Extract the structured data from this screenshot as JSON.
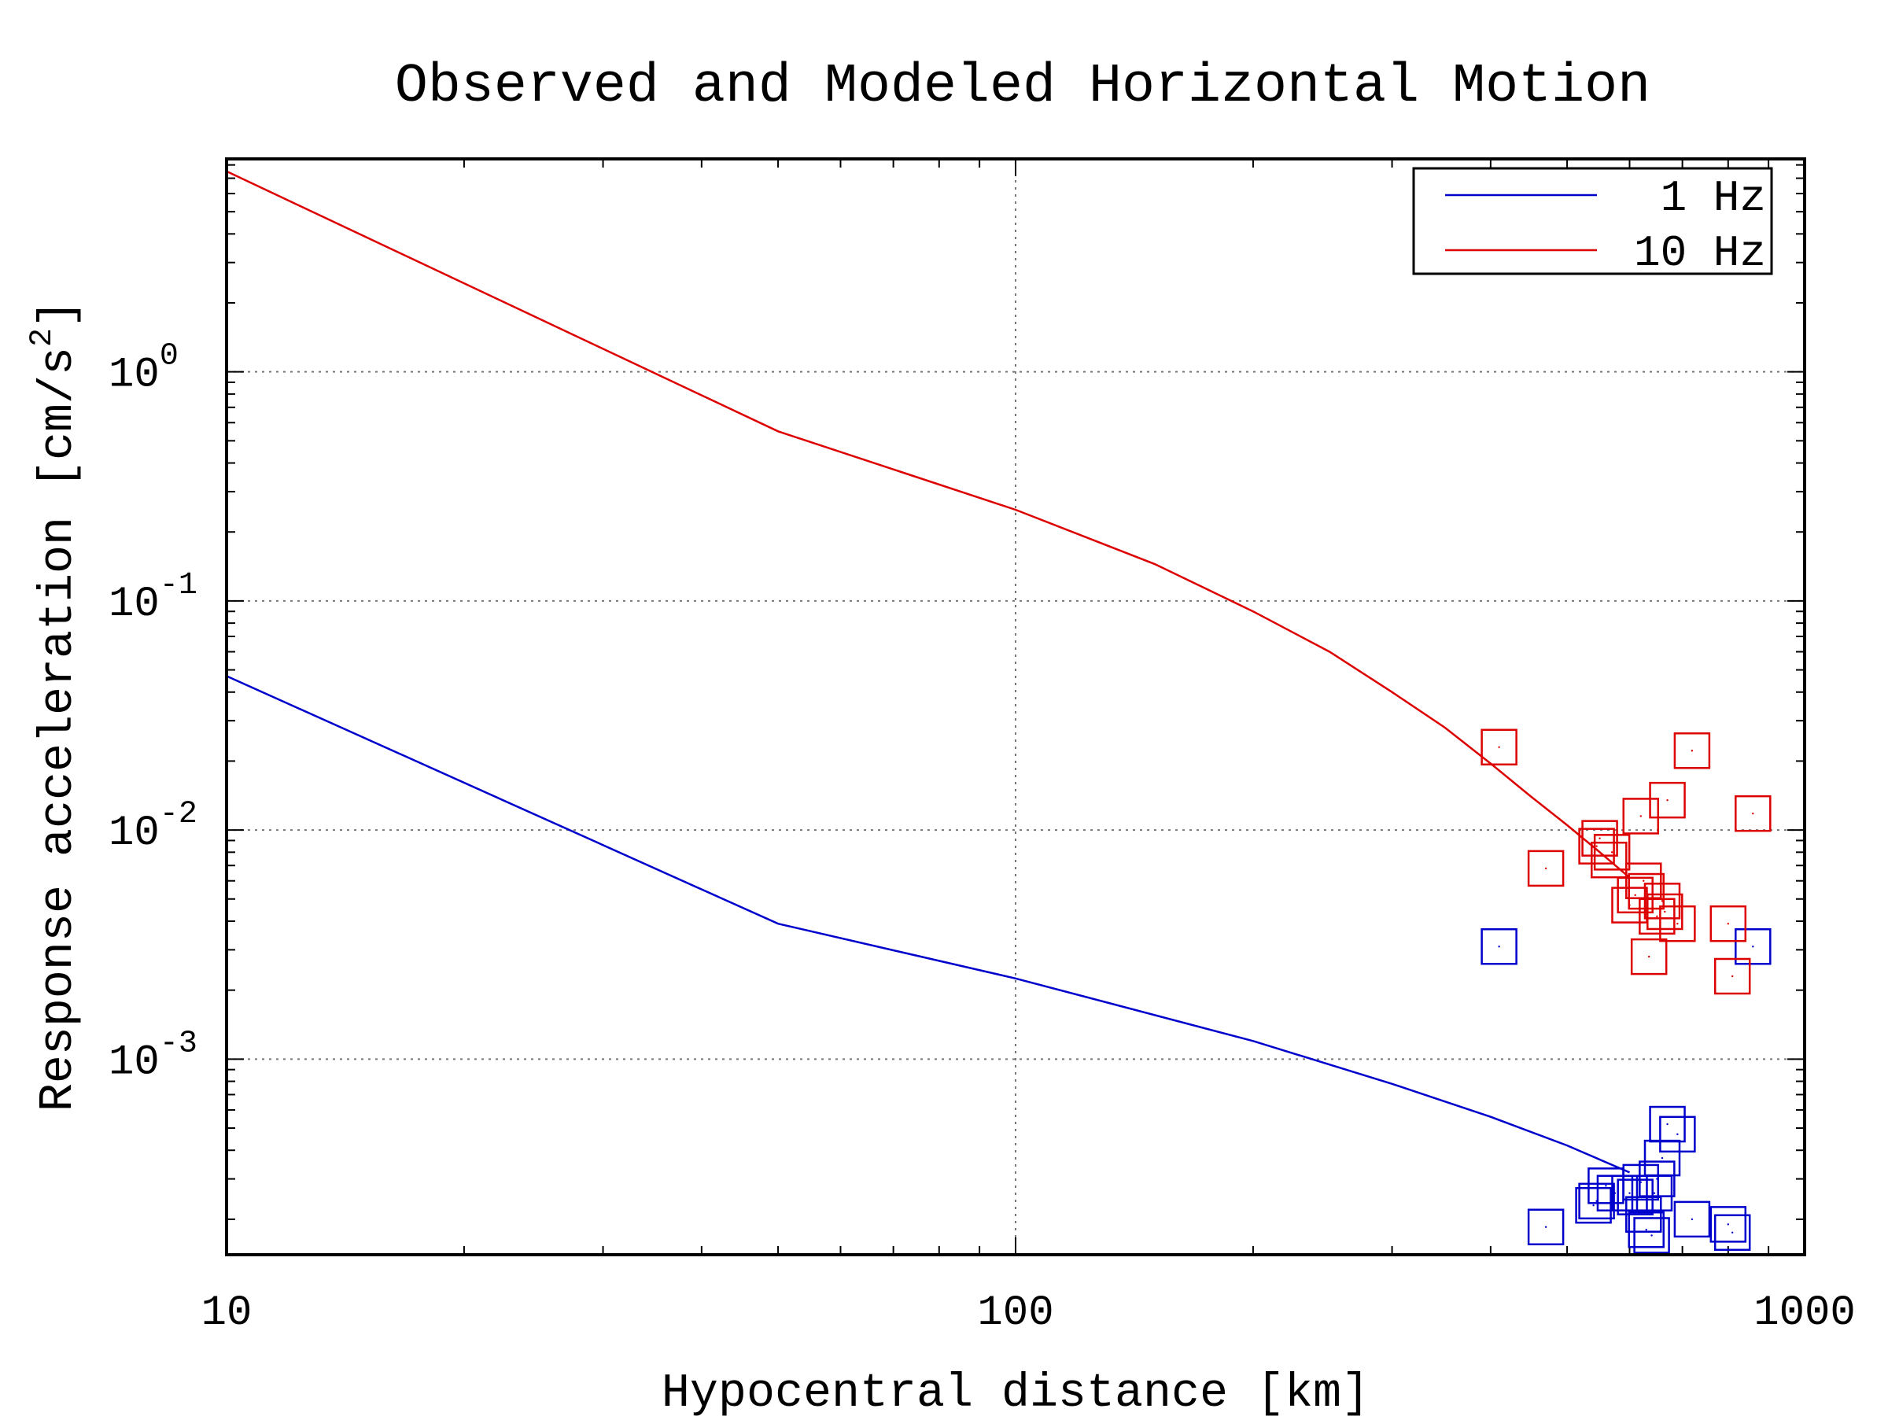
{
  "chart_data": {
    "type": "line",
    "title": "Observed and Modeled Horizontal Motion",
    "xlabel": "Hypocentral distance [km]",
    "ylabel": "Response acceleration [cm/s2]",
    "ylabel_parts": {
      "main": "Response acceleration [cm/s",
      "sup": "2",
      "close": "]"
    },
    "x_scale": "log",
    "y_scale": "log",
    "xlim": [
      10,
      1000
    ],
    "ylim": [
      0.00014,
      8.5
    ],
    "x_ticks": [
      {
        "value": 10,
        "label": "10"
      },
      {
        "value": 100,
        "label": "100"
      },
      {
        "value": 1000,
        "label": "1000"
      }
    ],
    "y_ticks": [
      {
        "value": 1,
        "base": "10",
        "exp": "0"
      },
      {
        "value": 0.1,
        "base": "10",
        "exp": "-1"
      },
      {
        "value": 0.01,
        "base": "10",
        "exp": "-2"
      },
      {
        "value": 0.001,
        "base": "10",
        "exp": "-3"
      }
    ],
    "grid": true,
    "legend_position": "top-right",
    "series": [
      {
        "name": "1 Hz",
        "color": "#0000cc",
        "x": [
          10,
          50,
          100,
          200,
          300,
          400,
          500,
          600
        ],
        "y": [
          0.047,
          0.0039,
          0.00225,
          0.0012,
          0.00078,
          0.00056,
          0.00042,
          0.00032
        ]
      },
      {
        "name": "10 Hz",
        "color": "#dd0000",
        "x": [
          10,
          50,
          100,
          150,
          200,
          250,
          300,
          350,
          400,
          450,
          500,
          550,
          600
        ],
        "y": [
          7.5,
          0.55,
          0.25,
          0.145,
          0.09,
          0.06,
          0.04,
          0.028,
          0.0195,
          0.014,
          0.0105,
          0.008,
          0.0062
        ]
      }
    ],
    "observed": [
      {
        "series": "1 Hz",
        "marker": "square",
        "color": "#0000cc",
        "points": [
          {
            "x": 410,
            "y": 0.0031
          },
          {
            "x": 860,
            "y": 0.0031
          },
          {
            "x": 470,
            "y": 0.000185
          },
          {
            "x": 540,
            "y": 0.00023
          },
          {
            "x": 545,
            "y": 0.00024
          },
          {
            "x": 560,
            "y": 0.00028
          },
          {
            "x": 575,
            "y": 0.00026
          },
          {
            "x": 600,
            "y": 0.00026
          },
          {
            "x": 610,
            "y": 0.00025
          },
          {
            "x": 620,
            "y": 0.00029
          },
          {
            "x": 625,
            "y": 0.00021
          },
          {
            "x": 630,
            "y": 0.00018
          },
          {
            "x": 640,
            "y": 0.00017
          },
          {
            "x": 645,
            "y": 0.00026
          },
          {
            "x": 650,
            "y": 0.0003
          },
          {
            "x": 660,
            "y": 0.00037
          },
          {
            "x": 670,
            "y": 0.00052
          },
          {
            "x": 690,
            "y": 0.00047
          },
          {
            "x": 720,
            "y": 0.0002
          },
          {
            "x": 800,
            "y": 0.00019
          },
          {
            "x": 810,
            "y": 0.000175
          }
        ]
      },
      {
        "series": "10 Hz",
        "marker": "square",
        "color": "#dd0000",
        "points": [
          {
            "x": 410,
            "y": 0.023
          },
          {
            "x": 470,
            "y": 0.0068
          },
          {
            "x": 545,
            "y": 0.0085
          },
          {
            "x": 550,
            "y": 0.0092
          },
          {
            "x": 565,
            "y": 0.0074
          },
          {
            "x": 570,
            "y": 0.008
          },
          {
            "x": 600,
            "y": 0.0047
          },
          {
            "x": 610,
            "y": 0.0052
          },
          {
            "x": 620,
            "y": 0.0115
          },
          {
            "x": 625,
            "y": 0.006
          },
          {
            "x": 630,
            "y": 0.0054
          },
          {
            "x": 635,
            "y": 0.0028
          },
          {
            "x": 650,
            "y": 0.0042
          },
          {
            "x": 660,
            "y": 0.0049
          },
          {
            "x": 665,
            "y": 0.0044
          },
          {
            "x": 670,
            "y": 0.0135
          },
          {
            "x": 690,
            "y": 0.0039
          },
          {
            "x": 720,
            "y": 0.0222
          },
          {
            "x": 800,
            "y": 0.0039
          },
          {
            "x": 810,
            "y": 0.0023
          },
          {
            "x": 860,
            "y": 0.0118
          }
        ]
      }
    ]
  }
}
